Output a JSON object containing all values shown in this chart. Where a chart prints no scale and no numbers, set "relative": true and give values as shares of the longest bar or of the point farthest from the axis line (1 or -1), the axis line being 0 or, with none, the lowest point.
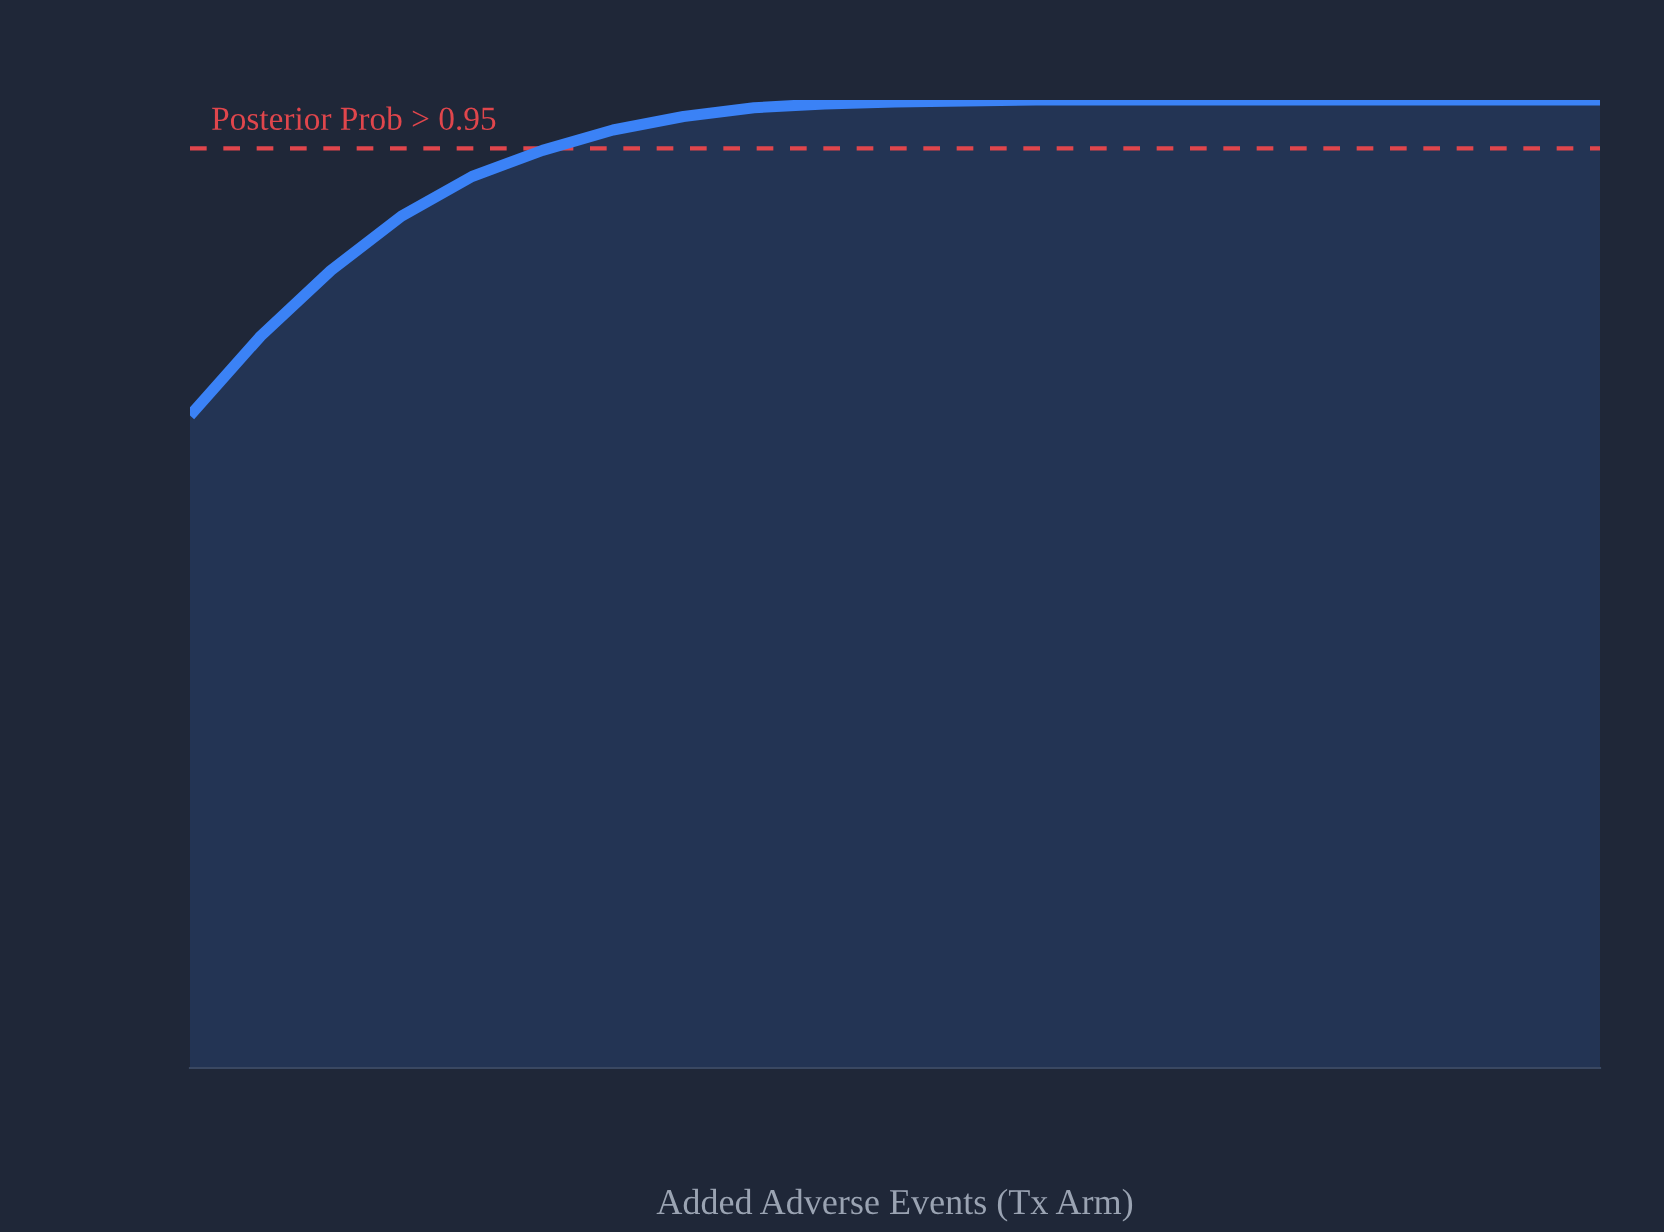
{
  "chart_data": {
    "type": "area",
    "relative": true,
    "xlabel": "Added Adverse Events (Tx Arm)",
    "categories": [
      null,
      null,
      null,
      null,
      null,
      null,
      null,
      null,
      null,
      null,
      null,
      null,
      null,
      null,
      null,
      null,
      null,
      null,
      null,
      null,
      null
    ],
    "series": [
      {
        "color": "#3b82f6",
        "values": [
          0.674,
          0.756,
          0.824,
          0.88,
          0.921,
          0.948,
          0.969,
          0.983,
          0.992,
          0.996,
          0.998,
          0.999,
          1,
          1,
          1,
          1,
          1,
          1,
          1,
          1,
          1
        ]
      }
    ],
    "ref_lines": [
      {
        "axis": "y",
        "value": 0.95,
        "label": "Posterior Prob > 0.95",
        "color": "#e0464c",
        "line_style": "dashed"
      }
    ],
    "grid": false,
    "legend": false
  }
}
